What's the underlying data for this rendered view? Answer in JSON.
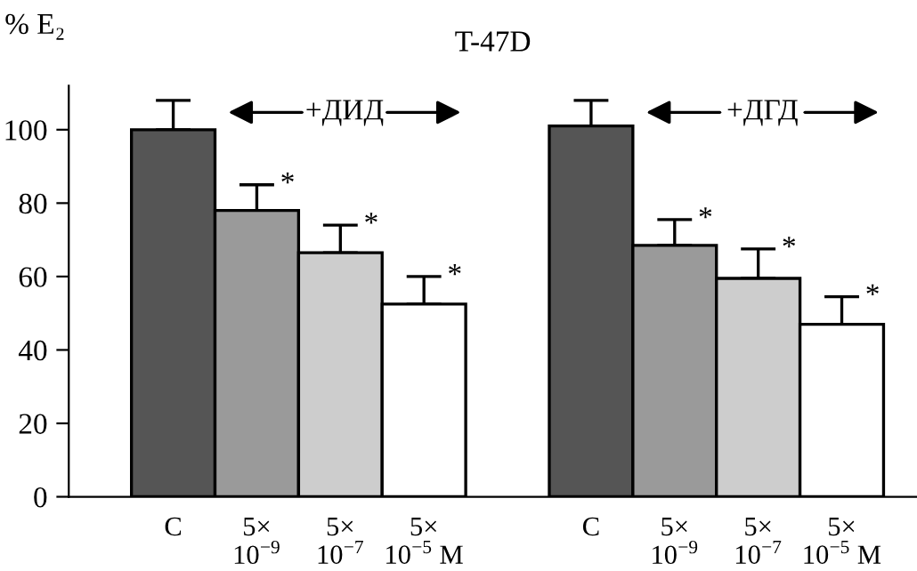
{
  "chart_data": {
    "type": "bar",
    "title": "T-47D",
    "ylabel": "% E₂",
    "categories": [
      "C",
      "5×\n10$^{−9}$",
      "5×\n10$^{−7}$",
      "5×\n10$^{−5}$ M",
      null,
      "C",
      "5×\n10$^{−9}$",
      "5×\n10$^{−7}$",
      "5×\n10$^{−5}$ M"
    ],
    "values": [
      100,
      78,
      66.5,
      52.5,
      null,
      101,
      68.5,
      59.5,
      47
    ],
    "errors": [
      [
        100,
        108
      ],
      [
        78,
        85
      ],
      [
        66.5,
        74
      ],
      [
        52.5,
        60
      ],
      null,
      [
        101,
        108
      ],
      [
        68.5,
        75.5
      ],
      [
        59.5,
        67.5
      ],
      [
        47,
        54.5
      ]
    ],
    "colors": [
      "#555555",
      "#9a9a9a",
      "#cdcdcd",
      "#ffffff",
      null,
      "#555555",
      "#9a9a9a",
      "#cdcdcd",
      "#ffffff"
    ],
    "ylim": [
      0,
      112
    ],
    "yticks": [
      0,
      20,
      40,
      60,
      80,
      100
    ],
    "grid": false,
    "annotations": [
      "+ДИД",
      "+ДГД",
      "*",
      "*",
      "*",
      "*",
      "*",
      "*"
    ]
  }
}
